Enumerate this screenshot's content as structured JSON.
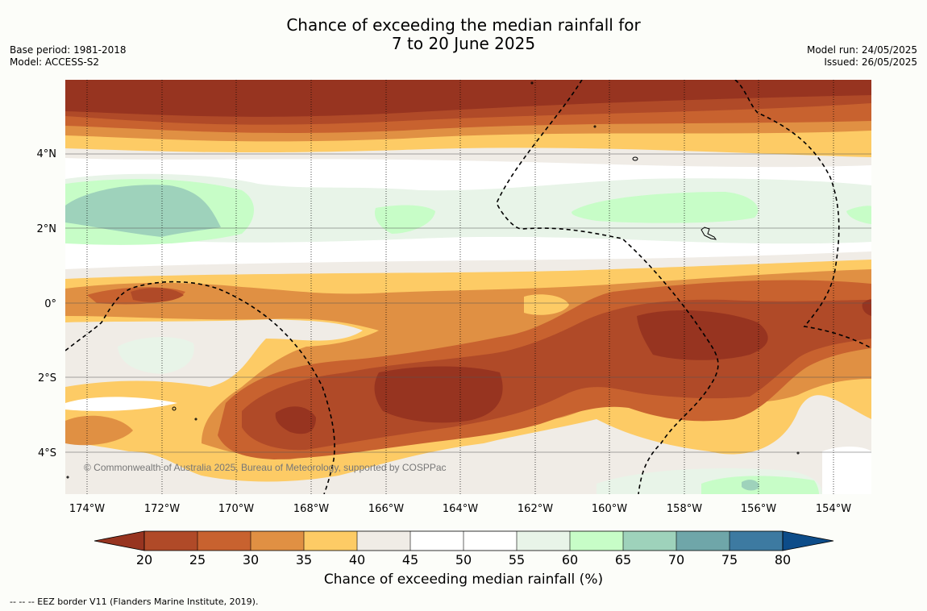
{
  "header": {
    "title_line1": "Chance of exceeding the median rainfall for",
    "title_line2": "7 to 20 June 2025",
    "base_period": "Base period: 1981-2018",
    "model": "Model: ACCESS-S2",
    "model_run": "Model run: 24/05/2025",
    "issued": "Issued: 26/05/2025"
  },
  "map": {
    "region": "Central Pacific (Kiribati region)",
    "lon_labels": [
      "174°W",
      "172°W",
      "170°W",
      "168°W",
      "166°W",
      "164°W",
      "162°W",
      "160°W",
      "158°W",
      "156°W",
      "154°W"
    ],
    "lat_labels": [
      "4°N",
      "2°N",
      "0°",
      "2°S",
      "4°S"
    ],
    "copyright": "© Commonwealth of Australia 2025, Bureau of Meteorology, supported by COSPPac",
    "background_color": "#fcfdf9"
  },
  "colorbar": {
    "title": "Chance of exceeding median rainfall (%)",
    "ticks": [
      "20",
      "25",
      "30",
      "35",
      "40",
      "45",
      "50",
      "55",
      "60",
      "65",
      "70",
      "75",
      "80"
    ],
    "low_extend_color": "#973420",
    "high_extend_color": "#0d4c89",
    "colors": [
      "#b04a28",
      "#c8622f",
      "#e09043",
      "#fdcb65",
      "#f0ece6",
      "#ffffff",
      "#ffffff",
      "#e8f4e8",
      "#c7fdc7",
      "#9ed2bb",
      "#6fa6a9",
      "#3d7aa1"
    ]
  },
  "footer": {
    "legend_note": "--  --  -- EEZ border V11 (Flanders Marine Institute, 2019)."
  }
}
